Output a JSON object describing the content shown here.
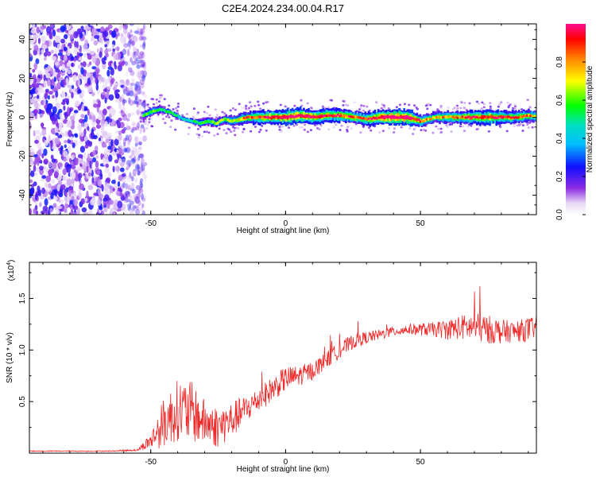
{
  "title": "C2E4.2024.234.00.04.R17",
  "colors": {
    "signal_line": "#ee2a2a",
    "axis": "#000000"
  },
  "chart_data": [
    {
      "type": "heatmap",
      "xlabel": "Height of straight line (km)",
      "ylabel": "Frequency (Hz)",
      "xlim": [
        -95,
        93
      ],
      "ylim": [
        -50,
        48
      ],
      "xticks": [
        -50,
        0,
        50
      ],
      "xtick_labels": [
        "-50",
        "0",
        "50"
      ],
      "yticks": [
        -40,
        -20,
        0,
        20,
        40
      ],
      "ytick_labels": [
        "-40",
        "-20",
        "0",
        "20",
        "40"
      ],
      "colorbar": {
        "label": "Normalized spectral amplitude",
        "range": [
          0,
          1
        ],
        "ticks": [
          0.0,
          0.2,
          0.4,
          0.6,
          0.8
        ],
        "tick_labels": [
          "0.0",
          "0.2",
          "0.4",
          "0.6",
          "0.8"
        ],
        "colormap": "rainbow: white-purple-blue-cyan-green-yellow-red-magenta"
      },
      "noise_region_x": [
        -95,
        -54
      ],
      "ridge": {
        "x": [
          -53,
          -50,
          -47,
          -44,
          -41,
          -38,
          -35,
          -32,
          -29,
          -26,
          -23,
          -20,
          -17,
          -14,
          -10,
          -5,
          0,
          5,
          10,
          15,
          20,
          25,
          30,
          35,
          40,
          45,
          50,
          55,
          60,
          65,
          70,
          75,
          80,
          85,
          90,
          93
        ],
        "frequency": [
          1,
          3,
          4,
          3,
          1,
          -1,
          -2,
          -3,
          -2,
          -3,
          -1,
          -2,
          -1,
          0,
          0,
          0,
          0,
          1,
          0,
          1,
          1,
          0,
          -1,
          0,
          0,
          0,
          -2,
          0,
          0,
          0,
          0,
          0,
          0,
          0,
          1,
          0
        ],
        "amplitude": [
          0.45,
          0.5,
          0.45,
          0.4,
          0.4,
          0.35,
          0.4,
          0.45,
          0.45,
          0.5,
          0.5,
          0.55,
          0.6,
          0.7,
          0.75,
          0.8,
          0.85,
          0.85,
          0.8,
          0.8,
          0.75,
          0.7,
          0.7,
          0.85,
          0.9,
          0.9,
          0.65,
          0.6,
          0.65,
          0.7,
          0.75,
          0.8,
          0.75,
          0.7,
          0.65,
          0.6
        ]
      }
    },
    {
      "type": "line",
      "xlabel": "Height of straight line (km)",
      "ylabel": "SNR (10 * v/v)",
      "y_scale_label": "(x10",
      "y_scale_exponent": "4",
      "y_scale_suffix": ")",
      "xlim": [
        -95,
        93
      ],
      "ylim": [
        0,
        1.85
      ],
      "xticks": [
        -50,
        0,
        50
      ],
      "xtick_labels": [
        "-50",
        "0",
        "50"
      ],
      "yticks": [
        0.5,
        1.0,
        1.5
      ],
      "ytick_labels": [
        "0.5",
        "1.0",
        "1.5"
      ],
      "series": [
        {
          "x": [
            -95,
            -80,
            -65,
            -55,
            -50,
            -45,
            -40,
            -35,
            -30,
            -25,
            -20,
            -15,
            -10,
            -5,
            0,
            5,
            10,
            15,
            20,
            25,
            30,
            35,
            40,
            45,
            50,
            55,
            60,
            65,
            70,
            75,
            80,
            85,
            90,
            93
          ],
          "mean": [
            0.02,
            0.02,
            0.02,
            0.03,
            0.12,
            0.3,
            0.42,
            0.4,
            0.3,
            0.25,
            0.32,
            0.42,
            0.52,
            0.62,
            0.72,
            0.75,
            0.8,
            0.9,
            1.0,
            1.08,
            1.12,
            1.15,
            1.18,
            1.2,
            1.2,
            1.2,
            1.2,
            1.22,
            1.22,
            1.2,
            1.18,
            1.18,
            1.2,
            1.22
          ],
          "spread": [
            0.005,
            0.005,
            0.005,
            0.01,
            0.08,
            0.25,
            0.3,
            0.3,
            0.22,
            0.2,
            0.18,
            0.14,
            0.12,
            0.12,
            0.12,
            0.1,
            0.09,
            0.08,
            0.08,
            0.07,
            0.06,
            0.05,
            0.05,
            0.05,
            0.06,
            0.07,
            0.1,
            0.12,
            0.14,
            0.14,
            0.12,
            0.1,
            0.12,
            0.1
          ]
        }
      ]
    }
  ]
}
